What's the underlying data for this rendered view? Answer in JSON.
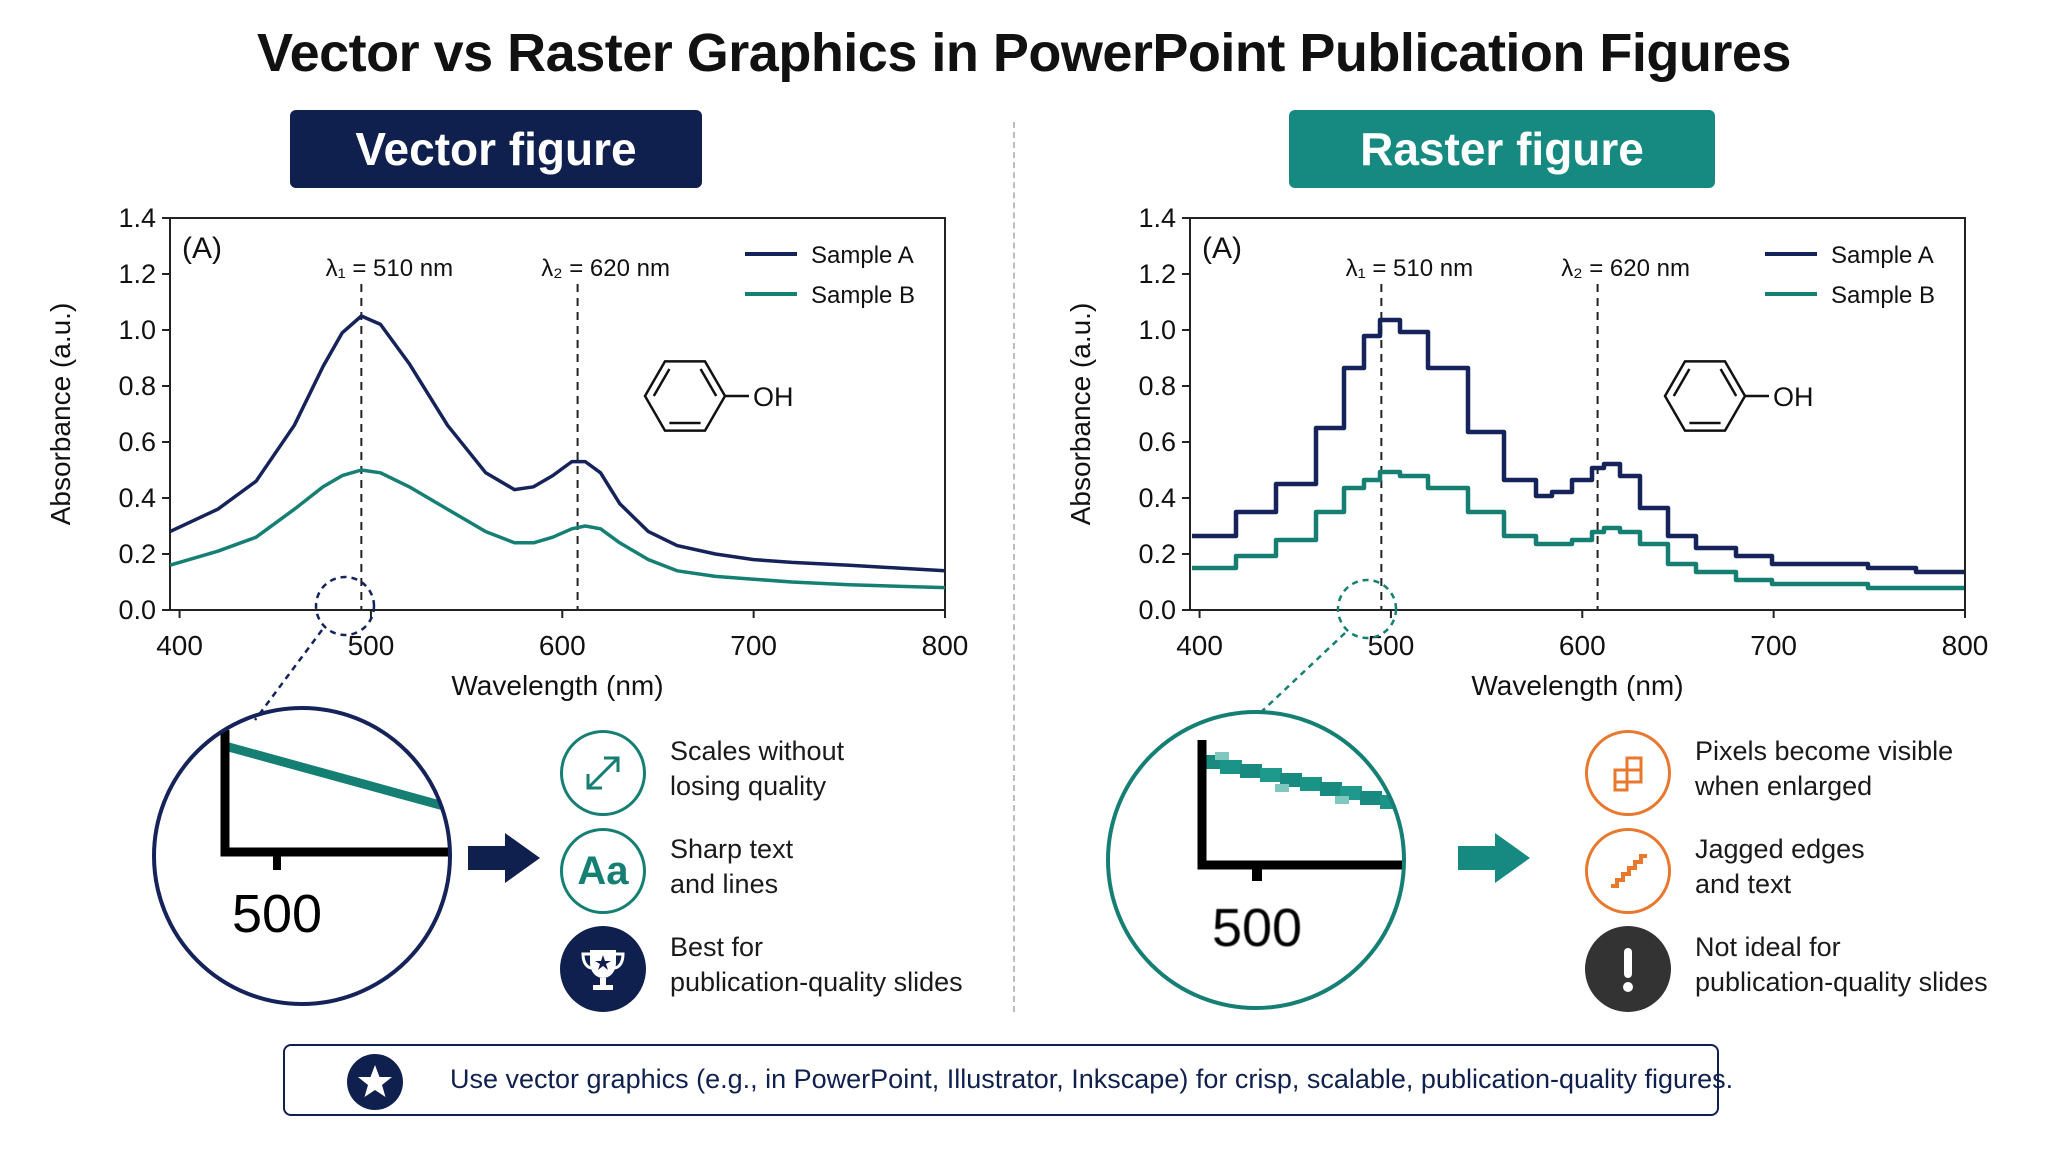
{
  "title": "Vector vs Raster Graphics in PowerPoint Publication Figures",
  "colors": {
    "navy": "#15235a",
    "teal": "#157f73",
    "orange": "#e8782e",
    "dark": "#333333"
  },
  "vector_panel": {
    "header": "Vector figure",
    "zoom_label": "500",
    "features": [
      {
        "icon": "scale-arrows-icon",
        "text": "Scales without\nlosing quality"
      },
      {
        "icon": "text-aa-icon",
        "icon_text": "Aa",
        "text": "Sharp text\nand lines"
      },
      {
        "icon": "trophy-star-icon",
        "text": "Best for\npublication-quality slides"
      }
    ]
  },
  "raster_panel": {
    "header": "Raster figure",
    "zoom_label": "500",
    "features": [
      {
        "icon": "pixel-blocks-icon",
        "text": "Pixels become visible\nwhen enlarged"
      },
      {
        "icon": "jagged-steps-icon",
        "text": "Jagged edges\nand text"
      },
      {
        "icon": "exclamation-icon",
        "text": "Not ideal for\npublication-quality slides"
      }
    ]
  },
  "footer": {
    "icon": "star-icon",
    "text": "Use vector graphics (e.g., in PowerPoint, Illustrator, Inkscape) for crisp, scalable, publication-quality figures."
  },
  "chart_data": [
    {
      "type": "line",
      "panel_label": "(A)",
      "xlabel": "Wavelength (nm)",
      "ylabel": "Absorbance (a.u.)",
      "xlim": [
        395,
        800
      ],
      "ylim": [
        0,
        1.4
      ],
      "xticks": [
        "400",
        "500",
        "600",
        "700",
        "800"
      ],
      "yticks": [
        "0.0",
        "0.2",
        "0.4",
        "0.6",
        "0.8",
        "1.0",
        "1.2",
        "1.4"
      ],
      "annotations": [
        {
          "text": "λ₁ = 510 nm",
          "x": 495
        },
        {
          "text": "λ₂ = 620 nm",
          "x": 608
        }
      ],
      "molecule_label": "OH",
      "legend": "top-right",
      "series": [
        {
          "name": "Sample A",
          "color": "#15235a",
          "x": [
            395,
            420,
            440,
            460,
            475,
            485,
            495,
            505,
            520,
            540,
            560,
            575,
            585,
            595,
            605,
            612,
            620,
            630,
            645,
            660,
            680,
            700,
            720,
            750,
            775,
            800
          ],
          "y": [
            0.28,
            0.36,
            0.46,
            0.66,
            0.87,
            0.99,
            1.05,
            1.02,
            0.88,
            0.66,
            0.49,
            0.43,
            0.44,
            0.48,
            0.53,
            0.53,
            0.49,
            0.38,
            0.28,
            0.23,
            0.2,
            0.18,
            0.17,
            0.16,
            0.15,
            0.14
          ]
        },
        {
          "name": "Sample B",
          "color": "#157f73",
          "x": [
            395,
            420,
            440,
            460,
            475,
            485,
            495,
            505,
            520,
            540,
            560,
            575,
            585,
            595,
            605,
            612,
            620,
            630,
            645,
            660,
            680,
            700,
            720,
            750,
            775,
            800
          ],
          "y": [
            0.16,
            0.21,
            0.26,
            0.36,
            0.44,
            0.48,
            0.5,
            0.49,
            0.44,
            0.36,
            0.28,
            0.24,
            0.24,
            0.26,
            0.29,
            0.3,
            0.29,
            0.24,
            0.18,
            0.14,
            0.12,
            0.11,
            0.1,
            0.09,
            0.085,
            0.08
          ]
        }
      ]
    },
    {
      "type": "line",
      "panel_label": "(A)",
      "xlabel": "Wavelength (nm)",
      "ylabel": "Absorbance (a.u.)",
      "xlim": [
        395,
        800
      ],
      "ylim": [
        0,
        1.4
      ],
      "xticks": [
        "400",
        "500",
        "600",
        "700",
        "800"
      ],
      "yticks": [
        "0.0",
        "0.2",
        "0.4",
        "0.6",
        "0.8",
        "1.0",
        "1.2",
        "1.4"
      ],
      "annotations": [
        {
          "text": "λ₁ = 510 nm",
          "x": 495
        },
        {
          "text": "λ₂ = 620 nm",
          "x": 608
        }
      ],
      "molecule_label": "OH",
      "legend": "top-right",
      "series": [
        {
          "name": "Sample A",
          "color": "#15235a",
          "x": [
            395,
            420,
            440,
            460,
            475,
            485,
            495,
            505,
            520,
            540,
            560,
            575,
            585,
            595,
            605,
            612,
            620,
            630,
            645,
            660,
            680,
            700,
            720,
            750,
            775,
            800
          ],
          "y": [
            0.27,
            0.35,
            0.45,
            0.65,
            0.86,
            0.98,
            1.03,
            1.0,
            0.86,
            0.64,
            0.47,
            0.41,
            0.42,
            0.46,
            0.51,
            0.52,
            0.48,
            0.37,
            0.27,
            0.22,
            0.19,
            0.17,
            0.16,
            0.15,
            0.14,
            0.13
          ]
        },
        {
          "name": "Sample B",
          "color": "#157f73",
          "x": [
            395,
            420,
            440,
            460,
            475,
            485,
            495,
            505,
            520,
            540,
            560,
            575,
            585,
            595,
            605,
            612,
            620,
            630,
            645,
            660,
            680,
            700,
            720,
            750,
            775,
            800
          ],
          "y": [
            0.15,
            0.2,
            0.25,
            0.35,
            0.43,
            0.47,
            0.49,
            0.48,
            0.43,
            0.35,
            0.27,
            0.23,
            0.23,
            0.25,
            0.28,
            0.3,
            0.28,
            0.23,
            0.17,
            0.13,
            0.11,
            0.1,
            0.09,
            0.085,
            0.08,
            0.075
          ]
        }
      ]
    }
  ]
}
